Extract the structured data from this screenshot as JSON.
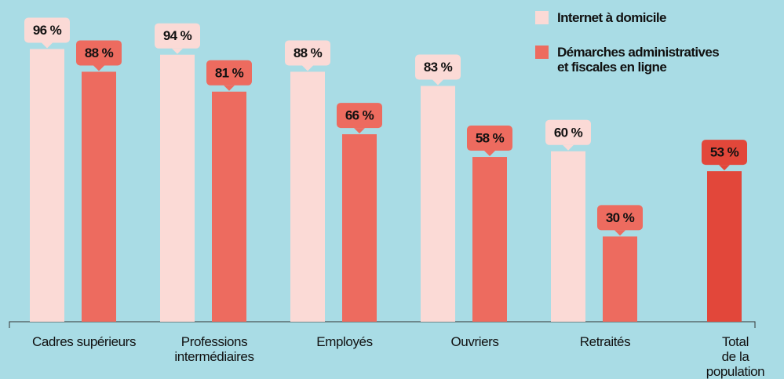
{
  "chart_data": {
    "type": "bar",
    "categories": [
      "Cadres supérieurs",
      "Professions\nintermédiaires",
      "Employés",
      "Ouvriers",
      "Retraités",
      "Total\nde la population"
    ],
    "series": [
      {
        "name": "Internet à domicile",
        "color": "#fbdad6",
        "values": [
          96,
          94,
          88,
          83,
          60,
          null
        ],
        "value_labels": [
          "96 %",
          "94 %",
          "88 %",
          "83 %",
          "60 %",
          null
        ]
      },
      {
        "name": "Démarches administratives\net fiscales en ligne",
        "color": "#ed6b5f",
        "colors": [
          "#ed6b5f",
          "#ed6b5f",
          "#ed6b5f",
          "#ed6b5f",
          "#ed6b5f",
          "#e2473a"
        ],
        "values": [
          88,
          81,
          66,
          58,
          30,
          53
        ],
        "value_labels": [
          "88 %",
          "81 %",
          "66 %",
          "58 %",
          "30 %",
          "53 %"
        ]
      }
    ],
    "ylim": [
      0,
      100
    ],
    "legend": "top-right"
  }
}
